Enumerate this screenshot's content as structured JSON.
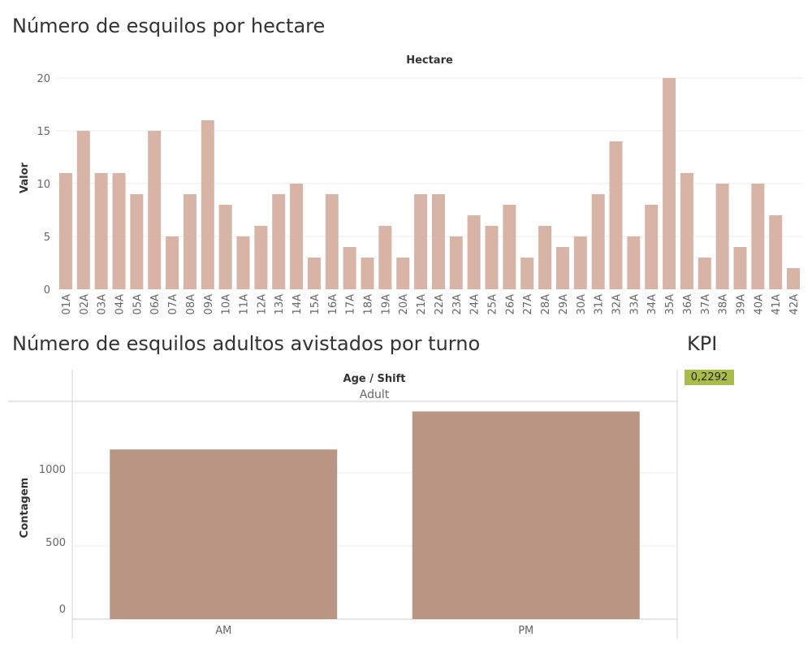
{
  "titles": {
    "hectare_chart": "Número de esquilos por hectare",
    "shift_chart": "Número de esquilos adultos avistados por turno",
    "kpi": "KPI"
  },
  "kpi": {
    "value": "0,2292",
    "color": "#a9bc4a"
  },
  "colors": {
    "hectare_bar": "#d8b4a6",
    "shift_bar": "#b99583"
  },
  "chart_data": [
    {
      "type": "bar",
      "title": "Número de esquilos por hectare",
      "header": "Hectare",
      "ylabel": "Valor",
      "ylim": [
        0,
        20
      ],
      "yticks": [
        0,
        5,
        10,
        15,
        20
      ],
      "categories": [
        "01A",
        "02A",
        "03A",
        "04A",
        "05A",
        "06A",
        "07A",
        "08A",
        "09A",
        "10A",
        "11A",
        "12A",
        "13A",
        "14A",
        "15A",
        "16A",
        "17A",
        "18A",
        "19A",
        "20A",
        "21A",
        "22A",
        "23A",
        "24A",
        "25A",
        "26A",
        "27A",
        "28A",
        "29A",
        "30A",
        "31A",
        "32A",
        "33A",
        "34A",
        "35A",
        "36A",
        "37A",
        "38A",
        "39A",
        "40A",
        "41A",
        "42A"
      ],
      "values": [
        11,
        15,
        11,
        11,
        9,
        15,
        5,
        9,
        16,
        8,
        5,
        6,
        9,
        10,
        3,
        9,
        4,
        3,
        6,
        3,
        9,
        9,
        5,
        7,
        6,
        8,
        3,
        6,
        4,
        5,
        9,
        14,
        5,
        8,
        20,
        11,
        3,
        10,
        4,
        10,
        7,
        2
      ],
      "grid": true
    },
    {
      "type": "bar",
      "title": "Número de esquilos adultos avistados por turno",
      "header": "Age / Shift",
      "subheader": "Adult",
      "ylabel": "Contagem",
      "yticks": [
        0,
        500,
        1000
      ],
      "categories": [
        "AM",
        "PM"
      ],
      "values": [
        1160,
        1420
      ],
      "grid": true
    }
  ]
}
